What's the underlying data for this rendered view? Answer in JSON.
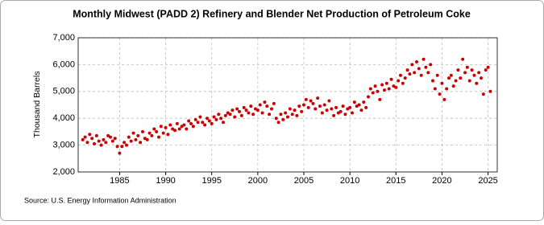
{
  "chart_data": {
    "type": "scatter",
    "title": "Monthly Midwest (PADD 2) Refinery and Blender Net Production of Petroleum Coke",
    "y_label": "Thousand Barrels",
    "source": "Source: U.S. Energy Information Administration",
    "color": "#cc0000",
    "grid": true,
    "xlim": [
      1980.5,
      2026.0
    ],
    "xticks": [
      1985,
      1990,
      1995,
      2000,
      2005,
      2010,
      2015,
      2020,
      2025
    ],
    "ylim": [
      2000,
      7000
    ],
    "yticks": [
      {
        "value": 2000,
        "label": "2,000"
      },
      {
        "value": 3000,
        "label": "3,000"
      },
      {
        "value": 4000,
        "label": "4,000"
      },
      {
        "value": 5000,
        "label": "5,000"
      },
      {
        "value": 6000,
        "label": "6,000"
      },
      {
        "value": 7000,
        "label": "7,000"
      }
    ],
    "x": [
      1981,
      1981.25,
      1981.5,
      1981.75,
      1982,
      1982.25,
      1982.5,
      1982.75,
      1983,
      1983.25,
      1983.5,
      1983.75,
      1984,
      1984.25,
      1984.5,
      1984.75,
      1985,
      1985.25,
      1985.5,
      1985.75,
      1986,
      1986.25,
      1986.5,
      1986.75,
      1987,
      1987.25,
      1987.5,
      1987.75,
      1988,
      1988.25,
      1988.5,
      1988.75,
      1989,
      1989.25,
      1989.5,
      1989.75,
      1990,
      1990.25,
      1990.5,
      1990.75,
      1991,
      1991.25,
      1991.5,
      1991.75,
      1992,
      1992.25,
      1992.5,
      1992.75,
      1993,
      1993.25,
      1993.5,
      1993.75,
      1994,
      1994.25,
      1994.5,
      1994.75,
      1995,
      1995.25,
      1995.5,
      1995.75,
      1996,
      1996.25,
      1996.5,
      1996.75,
      1997,
      1997.25,
      1997.5,
      1997.75,
      1998,
      1998.25,
      1998.5,
      1998.75,
      1999,
      1999.25,
      1999.5,
      1999.75,
      2000,
      2000.25,
      2000.5,
      2000.75,
      2001,
      2001.25,
      2001.5,
      2001.75,
      2002,
      2002.25,
      2002.5,
      2002.75,
      2003,
      2003.25,
      2003.5,
      2003.75,
      2004,
      2004.25,
      2004.5,
      2004.75,
      2005,
      2005.25,
      2005.5,
      2005.75,
      2006,
      2006.25,
      2006.5,
      2006.75,
      2007,
      2007.25,
      2007.5,
      2007.75,
      2008,
      2008.25,
      2008.5,
      2008.75,
      2009,
      2009.25,
      2009.5,
      2009.75,
      2010,
      2010.25,
      2010.5,
      2010.75,
      2011,
      2011.25,
      2011.5,
      2011.75,
      2012,
      2012.25,
      2012.5,
      2012.75,
      2013,
      2013.25,
      2013.5,
      2013.75,
      2014,
      2014.25,
      2014.5,
      2014.75,
      2015,
      2015.25,
      2015.5,
      2015.75,
      2016,
      2016.25,
      2016.5,
      2016.75,
      2017,
      2017.25,
      2017.5,
      2017.75,
      2018,
      2018.25,
      2018.5,
      2018.75,
      2019,
      2019.25,
      2019.5,
      2019.75,
      2020,
      2020.25,
      2020.5,
      2020.75,
      2021,
      2021.25,
      2021.5,
      2021.75,
      2022,
      2022.25,
      2022.5,
      2022.75,
      2023,
      2023.25,
      2023.5,
      2023.75,
      2024,
      2024.25,
      2024.5,
      2024.75,
      2025,
      2025.25
    ],
    "values": [
      3200,
      3300,
      3100,
      3400,
      3250,
      3050,
      3350,
      3150,
      3000,
      3200,
      3100,
      3350,
      3300,
      3150,
      3250,
      2950,
      2700,
      2950,
      3100,
      3000,
      3300,
      3150,
      3450,
      3200,
      3350,
      3100,
      3500,
      3250,
      3200,
      3450,
      3350,
      3600,
      3500,
      3300,
      3700,
      3450,
      3650,
      3400,
      3750,
      3600,
      3550,
      3800,
      3600,
      3700,
      3750,
      3600,
      3900,
      3800,
      3700,
      3950,
      3850,
      4050,
      3850,
      3750,
      4000,
      3900,
      3800,
      4050,
      3950,
      4150,
      4000,
      3850,
      4100,
      4200,
      4150,
      4300,
      4050,
      4350,
      4250,
      4100,
      4400,
      4300,
      4200,
      4450,
      4150,
      4350,
      4300,
      4500,
      4200,
      4600,
      4450,
      4150,
      4350,
      4550,
      4000,
      3850,
      4150,
      3950,
      4200,
      4050,
      4350,
      4150,
      4300,
      4100,
      4450,
      4250,
      4500,
      4700,
      4400,
      4650,
      4550,
      4350,
      4750,
      4450,
      4200,
      4500,
      4300,
      4650,
      4350,
      4100,
      4400,
      4200,
      4250,
      4450,
      4150,
      4350,
      4400,
      4200,
      4600,
      4450,
      4500,
      4300,
      4600,
      4400,
      4800,
      5100,
      4950,
      5200,
      5000,
      4700,
      5250,
      5050,
      5300,
      5100,
      5450,
      5200,
      5150,
      5400,
      5600,
      5300,
      5500,
      5800,
      5650,
      6000,
      5700,
      6100,
      5850,
      5600,
      6200,
      5900,
      5700,
      6000,
      5400,
      5100,
      5600,
      4900,
      5300,
      4700,
      5100,
      5500,
      5600,
      5200,
      5400,
      5800,
      5500,
      6200,
      5700,
      5900,
      5400,
      5800,
      5600,
      5300,
      5700,
      5500,
      4900,
      5800,
      5900,
      5000
    ]
  }
}
